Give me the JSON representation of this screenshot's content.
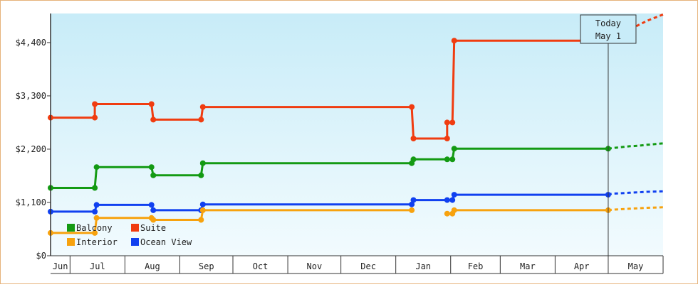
{
  "chart_data": {
    "type": "line",
    "step": true,
    "y_ticks": [
      "$0",
      "$1,100",
      "$2,200",
      "$3,300",
      "$4,400"
    ],
    "y_tick_values": [
      0,
      1100,
      2200,
      3300,
      4400
    ],
    "ylim": [
      0,
      5000
    ],
    "x_month_labels": [
      "Jun",
      "Jul",
      "Aug",
      "Sep",
      "Oct",
      "Nov",
      "Dec",
      "Jan",
      "Feb",
      "Mar",
      "Apr",
      "May"
    ],
    "x_month_starts": [
      "2024-06-01",
      "2024-07-01",
      "2024-08-01",
      "2024-09-01",
      "2024-10-01",
      "2024-11-01",
      "2024-12-01",
      "2025-01-01",
      "2025-02-01",
      "2025-03-01",
      "2025-04-01",
      "2025-05-01"
    ],
    "x_range": [
      "2024-06-20",
      "2025-06-01"
    ],
    "today": {
      "line1": "Today",
      "line2": "May 1",
      "date": "2025-05-01"
    },
    "grid": false,
    "legend_placement": "bottom-left",
    "legend": [
      {
        "key": "balcony",
        "text": "Balcony"
      },
      {
        "key": "suite",
        "text": "Suite"
      },
      {
        "key": "interior",
        "text": "Interior"
      },
      {
        "key": "ocean",
        "text": "Ocean View"
      }
    ],
    "series": [
      {
        "key": "suite",
        "name": "Suite",
        "color": "#f03c10",
        "points": [
          [
            "2024-06-20",
            2850
          ],
          [
            "2024-07-15",
            2850
          ],
          [
            "2024-07-15",
            3130
          ],
          [
            "2024-08-16",
            3130
          ],
          [
            "2024-08-17",
            2810
          ],
          [
            "2024-09-13",
            2810
          ],
          [
            "2024-09-14",
            3070
          ],
          [
            "2025-01-10",
            3070
          ],
          [
            "2025-01-11",
            2420
          ],
          [
            "2025-01-30",
            2420
          ],
          [
            "2025-01-30",
            2750
          ],
          [
            "2025-02-02",
            2750
          ],
          [
            "2025-02-03",
            4440
          ],
          [
            "2025-05-01",
            4440
          ]
        ],
        "projection": [
          [
            "2025-05-01",
            4440
          ],
          [
            "2025-05-03",
            4520
          ],
          [
            "2025-05-08",
            4590
          ],
          [
            "2025-05-13",
            4670
          ],
          [
            "2025-05-18",
            4760
          ],
          [
            "2025-05-23",
            4850
          ],
          [
            "2025-06-01",
            4980
          ]
        ]
      },
      {
        "key": "balcony",
        "name": "Balcony",
        "color": "#139a13",
        "points": [
          [
            "2024-06-20",
            1400
          ],
          [
            "2024-07-15",
            1400
          ],
          [
            "2024-07-16",
            1830
          ],
          [
            "2024-08-16",
            1830
          ],
          [
            "2024-08-17",
            1660
          ],
          [
            "2024-09-13",
            1660
          ],
          [
            "2024-09-14",
            1910
          ],
          [
            "2025-01-10",
            1910
          ],
          [
            "2025-01-11",
            1990
          ],
          [
            "2025-01-30",
            1990
          ],
          [
            "2025-02-02",
            1990
          ],
          [
            "2025-02-03",
            2210
          ],
          [
            "2025-05-01",
            2210
          ]
        ],
        "projection": [
          [
            "2025-05-01",
            2210
          ],
          [
            "2025-05-03",
            2220
          ],
          [
            "2025-05-08",
            2240
          ],
          [
            "2025-05-13",
            2260
          ],
          [
            "2025-05-18",
            2270
          ],
          [
            "2025-05-23",
            2290
          ],
          [
            "2025-06-01",
            2320
          ]
        ]
      },
      {
        "key": "ocean",
        "name": "Ocean View",
        "color": "#1040f0",
        "points": [
          [
            "2024-06-20",
            910
          ],
          [
            "2024-07-15",
            910
          ],
          [
            "2024-07-16",
            1050
          ],
          [
            "2024-08-16",
            1050
          ],
          [
            "2024-08-17",
            940
          ],
          [
            "2024-09-13",
            940
          ],
          [
            "2024-09-14",
            1060
          ],
          [
            "2025-01-10",
            1060
          ],
          [
            "2025-01-11",
            1150
          ],
          [
            "2025-01-30",
            1150
          ],
          [
            "2025-02-02",
            1150
          ],
          [
            "2025-02-03",
            1260
          ],
          [
            "2025-05-01",
            1260
          ]
        ],
        "projection": [
          [
            "2025-05-01",
            1260
          ],
          [
            "2025-05-03",
            1280
          ],
          [
            "2025-05-08",
            1290
          ],
          [
            "2025-05-13",
            1300
          ],
          [
            "2025-05-18",
            1310
          ],
          [
            "2025-05-23",
            1320
          ],
          [
            "2025-06-01",
            1330
          ]
        ]
      },
      {
        "key": "interior",
        "name": "Interior",
        "color": "#f7a20e",
        "points": [
          [
            "2024-06-20",
            470
          ],
          [
            "2024-07-15",
            470
          ],
          [
            "2024-07-16",
            780
          ],
          [
            "2024-08-16",
            780
          ],
          [
            "2024-08-17",
            740
          ],
          [
            "2024-09-13",
            740
          ],
          [
            "2024-09-14",
            940
          ],
          [
            "2025-01-10",
            940
          ]
        ],
        "points2": [
          [
            "2025-01-30",
            870
          ],
          [
            "2025-02-02",
            870
          ],
          [
            "2025-02-03",
            940
          ],
          [
            "2025-05-01",
            940
          ]
        ],
        "projection": [
          [
            "2025-05-01",
            940
          ],
          [
            "2025-05-03",
            950
          ],
          [
            "2025-05-08",
            960
          ],
          [
            "2025-05-13",
            970
          ],
          [
            "2025-05-18",
            980
          ],
          [
            "2025-05-23",
            990
          ],
          [
            "2025-06-01",
            1000
          ]
        ]
      }
    ]
  }
}
